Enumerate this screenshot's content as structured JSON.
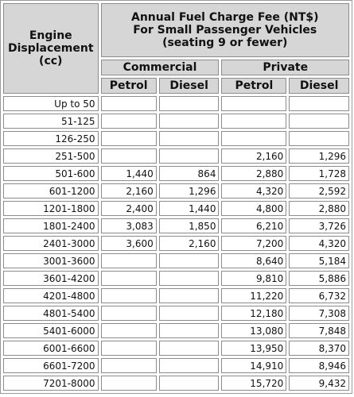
{
  "header": {
    "row_label_lines": [
      "Engine",
      "Displacement",
      "(cc)"
    ],
    "title_lines": [
      "Annual Fuel Charge Fee (NT$)",
      "For Small Passenger Vehicles",
      "(seating 9 or fewer)"
    ],
    "groups": [
      "Commercial",
      "Private"
    ],
    "subcolumns": [
      "Petrol",
      "Diesel",
      "Petrol",
      "Diesel"
    ]
  },
  "rows": [
    {
      "range": "Up to 50",
      "values": [
        "",
        "",
        "",
        ""
      ]
    },
    {
      "range": "51-125",
      "values": [
        "",
        "",
        "",
        ""
      ]
    },
    {
      "range": "126-250",
      "values": [
        "",
        "",
        "",
        ""
      ]
    },
    {
      "range": "251-500",
      "values": [
        "",
        "",
        "2,160",
        "1,296"
      ]
    },
    {
      "range": "501-600",
      "values": [
        "1,440",
        "864",
        "2,880",
        "1,728"
      ]
    },
    {
      "range": "601-1200",
      "values": [
        "2,160",
        "1,296",
        "4,320",
        "2,592"
      ]
    },
    {
      "range": "1201-1800",
      "values": [
        "2,400",
        "1,440",
        "4,800",
        "2,880"
      ]
    },
    {
      "range": "1801-2400",
      "values": [
        "3,083",
        "1,850",
        "6,210",
        "3,726"
      ]
    },
    {
      "range": "2401-3000",
      "values": [
        "3,600",
        "2,160",
        "7,200",
        "4,320"
      ]
    },
    {
      "range": "3001-3600",
      "values": [
        "",
        "",
        "8,640",
        "5,184"
      ]
    },
    {
      "range": "3601-4200",
      "values": [
        "",
        "",
        "9,810",
        "5,886"
      ]
    },
    {
      "range": "4201-4800",
      "values": [
        "",
        "",
        "11,220",
        "6,732"
      ]
    },
    {
      "range": "4801-5400",
      "values": [
        "",
        "",
        "12,180",
        "7,308"
      ]
    },
    {
      "range": "5401-6000",
      "values": [
        "",
        "",
        "13,080",
        "7,848"
      ]
    },
    {
      "range": "6001-6600",
      "values": [
        "",
        "",
        "13,950",
        "8,370"
      ]
    },
    {
      "range": "6601-7200",
      "values": [
        "",
        "",
        "14,910",
        "8,946"
      ]
    },
    {
      "range": "7201-8000",
      "values": [
        "",
        "",
        "15,720",
        "9,432"
      ]
    }
  ]
}
